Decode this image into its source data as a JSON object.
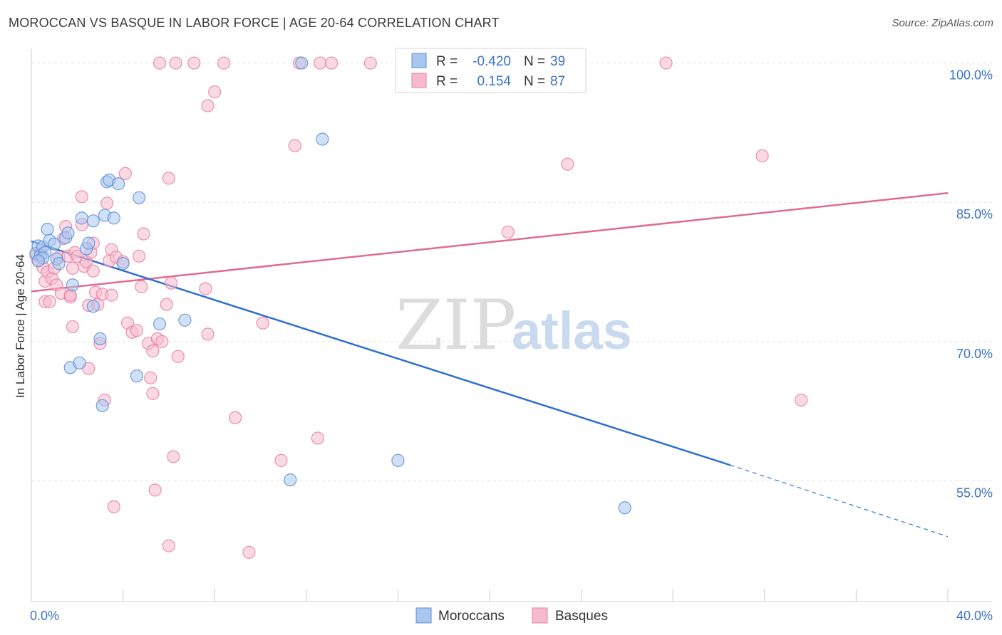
{
  "title": "MOROCCAN VS BASQUE IN LABOR FORCE | AGE 20-64 CORRELATION CHART",
  "source": "Source: ZipAtlas.com",
  "watermark": {
    "part1": "ZIP",
    "part2": "atlas"
  },
  "legend": {
    "rows": [
      {
        "r_label": "R =",
        "r_value": "-0.420",
        "n_label": "N =",
        "n_value": "39",
        "color": "#a9c6ee",
        "stroke": "#5b8fd6"
      },
      {
        "r_label": "R =",
        "r_value": "0.154",
        "n_label": "N =",
        "n_value": "87",
        "color": "#f7b9ce",
        "stroke": "#e57fa0"
      }
    ]
  },
  "bottom_legend": [
    {
      "label": "Moroccans",
      "color": "#a9c6ee",
      "stroke": "#5b8fd6"
    },
    {
      "label": "Basques",
      "color": "#f7b9ce",
      "stroke": "#e57fa0"
    }
  ],
  "chart_data": {
    "type": "scatter",
    "title": "MOROCCAN VS BASQUE IN LABOR FORCE | AGE 20-64 CORRELATION CHART",
    "xlabel": "",
    "ylabel": "In Labor Force | Age 20-64",
    "xlim": [
      0,
      40
    ],
    "ylim": [
      42,
      101.5
    ],
    "x_tick_labels": [
      {
        "value": 0,
        "label": "0.0%"
      },
      {
        "value": 40,
        "label": "40.0%"
      }
    ],
    "y_tick_labels": [
      {
        "value": 100,
        "label": "100.0%"
      },
      {
        "value": 85,
        "label": "85.0%"
      },
      {
        "value": 70,
        "label": "70.0%"
      },
      {
        "value": 55,
        "label": "55.0%"
      }
    ],
    "grid": true,
    "legend_position": "top-center",
    "series": [
      {
        "name": "Moroccans",
        "color": "#5b8fd6",
        "fill": "#a9c6ee",
        "trend": {
          "x": [
            0,
            30.5
          ],
          "y": [
            80.8,
            56.7
          ],
          "dashed_to": [
            40,
            49.0
          ]
        },
        "points": [
          [
            0.2,
            79.5
          ],
          [
            0.3,
            80.3
          ],
          [
            0.4,
            79.3
          ],
          [
            0.5,
            80.2
          ],
          [
            0.6,
            79.6
          ],
          [
            0.7,
            82.1
          ],
          [
            0.8,
            80.9
          ],
          [
            1.0,
            80.5
          ],
          [
            1.1,
            78.9
          ],
          [
            1.2,
            78.4
          ],
          [
            1.5,
            81.2
          ],
          [
            1.6,
            81.7
          ],
          [
            1.7,
            67.2
          ],
          [
            1.8,
            76.1
          ],
          [
            2.1,
            67.7
          ],
          [
            2.2,
            83.3
          ],
          [
            2.4,
            80.0
          ],
          [
            2.5,
            80.6
          ],
          [
            2.7,
            73.8
          ],
          [
            2.7,
            83.0
          ],
          [
            3.0,
            70.3
          ],
          [
            3.1,
            63.1
          ],
          [
            3.2,
            83.6
          ],
          [
            3.3,
            87.2
          ],
          [
            3.4,
            87.4
          ],
          [
            3.6,
            83.3
          ],
          [
            3.8,
            87.0
          ],
          [
            4.0,
            78.4
          ],
          [
            4.6,
            66.3
          ],
          [
            4.7,
            85.5
          ],
          [
            5.6,
            71.9
          ],
          [
            6.7,
            72.3
          ],
          [
            11.3,
            55.1
          ],
          [
            11.8,
            100.0
          ],
          [
            12.7,
            91.8
          ],
          [
            16.0,
            57.2
          ],
          [
            25.9,
            52.1
          ],
          [
            0.5,
            79.0
          ],
          [
            0.3,
            78.7
          ]
        ]
      },
      {
        "name": "Basques",
        "color": "#e57fa0",
        "fill": "#f7b9ce",
        "trend": {
          "x": [
            0,
            40
          ],
          "y": [
            75.4,
            86.0
          ]
        },
        "points": [
          [
            0.2,
            79.3
          ],
          [
            0.3,
            78.7
          ],
          [
            0.4,
            79.8
          ],
          [
            0.5,
            78.0
          ],
          [
            0.6,
            76.5
          ],
          [
            0.6,
            74.3
          ],
          [
            0.7,
            77.5
          ],
          [
            0.8,
            74.3
          ],
          [
            0.9,
            76.8
          ],
          [
            1.0,
            77.9
          ],
          [
            1.1,
            76.1
          ],
          [
            1.2,
            79.1
          ],
          [
            1.3,
            75.2
          ],
          [
            1.4,
            81.1
          ],
          [
            1.5,
            82.4
          ],
          [
            1.6,
            79.2
          ],
          [
            1.7,
            74.8
          ],
          [
            1.7,
            75.0
          ],
          [
            1.8,
            77.9
          ],
          [
            1.8,
            71.6
          ],
          [
            1.9,
            79.6
          ],
          [
            2.0,
            79.2
          ],
          [
            2.2,
            85.6
          ],
          [
            2.2,
            82.6
          ],
          [
            2.3,
            78.1
          ],
          [
            2.4,
            78.6
          ],
          [
            2.5,
            67.1
          ],
          [
            2.5,
            73.9
          ],
          [
            2.6,
            79.6
          ],
          [
            2.7,
            77.6
          ],
          [
            2.7,
            80.6
          ],
          [
            2.8,
            75.3
          ],
          [
            2.9,
            74.0
          ],
          [
            3.0,
            69.8
          ],
          [
            3.1,
            75.1
          ],
          [
            3.2,
            63.7
          ],
          [
            3.3,
            84.9
          ],
          [
            3.4,
            78.7
          ],
          [
            3.5,
            75.0
          ],
          [
            3.5,
            79.9
          ],
          [
            3.6,
            52.2
          ],
          [
            3.7,
            79.1
          ],
          [
            4.0,
            78.6
          ],
          [
            4.1,
            88.1
          ],
          [
            4.2,
            72.0
          ],
          [
            4.4,
            71.0
          ],
          [
            4.6,
            71.2
          ],
          [
            4.7,
            79.2
          ],
          [
            4.8,
            75.9
          ],
          [
            4.9,
            81.6
          ],
          [
            5.1,
            69.8
          ],
          [
            5.2,
            66.1
          ],
          [
            5.3,
            64.4
          ],
          [
            5.3,
            69.0
          ],
          [
            5.4,
            54.0
          ],
          [
            5.5,
            70.3
          ],
          [
            5.6,
            100.0
          ],
          [
            5.7,
            70.0
          ],
          [
            5.9,
            74.0
          ],
          [
            6.0,
            48.0
          ],
          [
            6.0,
            87.6
          ],
          [
            6.1,
            76.3
          ],
          [
            6.2,
            57.6
          ],
          [
            6.3,
            100.0
          ],
          [
            6.4,
            68.4
          ],
          [
            7.1,
            100.0
          ],
          [
            7.6,
            75.7
          ],
          [
            7.7,
            70.8
          ],
          [
            7.7,
            95.4
          ],
          [
            8.0,
            96.9
          ],
          [
            8.4,
            100.0
          ],
          [
            8.9,
            61.8
          ],
          [
            9.5,
            47.3
          ],
          [
            10.1,
            72.0
          ],
          [
            10.9,
            57.2
          ],
          [
            11.5,
            91.1
          ],
          [
            11.7,
            100.0
          ],
          [
            12.5,
            59.6
          ],
          [
            12.6,
            100.0
          ],
          [
            13.1,
            100.0
          ],
          [
            14.8,
            100.0
          ],
          [
            17.0,
            100.0
          ],
          [
            20.8,
            81.8
          ],
          [
            23.4,
            89.1
          ],
          [
            27.7,
            100.0
          ],
          [
            31.9,
            90.0
          ],
          [
            33.6,
            63.7
          ]
        ]
      }
    ]
  }
}
